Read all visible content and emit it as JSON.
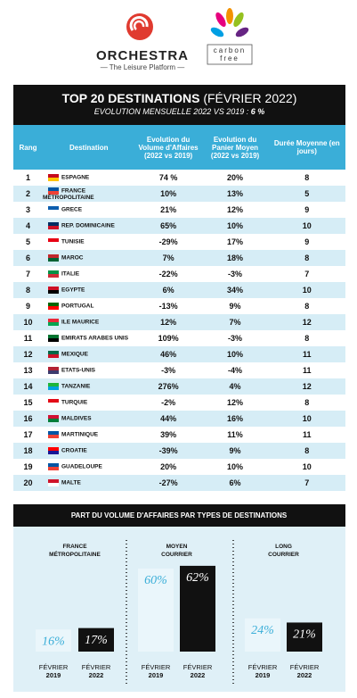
{
  "header": {
    "brand": "ORCHESTRA",
    "tagline": "— The Leisure Platform —",
    "partner_line1": "carbon",
    "partner_line2": "free"
  },
  "table": {
    "title": "TOP 20 DESTINATIONS",
    "title_suffix": "(FÉVRIER 2022)",
    "subtitle": "EVOLUTION MENSUELLE 2022 VS 2019 :",
    "subtitle_value": "6 %",
    "columns": [
      "Rang",
      "Destination",
      "Evolution du Volume d'Affaires (2022 vs 2019)",
      "Evolution du Panier Moyen (2022 vs 2019)",
      "Durée Moyenne (en jours)"
    ],
    "rows": [
      [
        1,
        "ESPAGNE",
        "74 %",
        "20%",
        8
      ],
      [
        2,
        "FRANCE MÉTROPOLITAINE",
        "10%",
        "13%",
        5
      ],
      [
        3,
        "GRECE",
        "21%",
        "12%",
        9
      ],
      [
        4,
        "REP. DOMINICAINE",
        "65%",
        "10%",
        10
      ],
      [
        5,
        "TUNISIE",
        "-29%",
        "17%",
        9
      ],
      [
        6,
        "MAROC",
        "7%",
        "18%",
        8
      ],
      [
        7,
        "ITALIE",
        "-22%",
        "-3%",
        7
      ],
      [
        8,
        "EGYPTE",
        "6%",
        "34%",
        10
      ],
      [
        9,
        "PORTUGAL",
        "-13%",
        "9%",
        8
      ],
      [
        10,
        "ILE MAURICE",
        "12%",
        "7%",
        12
      ],
      [
        11,
        "EMIRATS ARABES UNIS",
        "109%",
        "-3%",
        8
      ],
      [
        12,
        "MEXIQUE",
        "46%",
        "10%",
        11
      ],
      [
        13,
        "ETATS-UNIS",
        "-3%",
        "-4%",
        11
      ],
      [
        14,
        "TANZANIE",
        "276%",
        "4%",
        12
      ],
      [
        15,
        "TURQUIE",
        "-2%",
        "12%",
        8
      ],
      [
        16,
        "MALDIVES",
        "44%",
        "16%",
        10
      ],
      [
        17,
        "MARTINIQUE",
        "39%",
        "11%",
        11
      ],
      [
        18,
        "CROATIE",
        "-39%",
        "9%",
        8
      ],
      [
        19,
        "GUADELOUPE",
        "20%",
        "10%",
        10
      ],
      [
        20,
        "MALTE",
        "-27%",
        "6%",
        7
      ]
    ]
  },
  "chart_data": {
    "type": "bar",
    "title": "PART DU VOLUME D'AFFAIRES PAR TYPES DE DESTINATIONS",
    "categories": [
      "FRANCE MÉTROPOLITAINE",
      "MOYEN COURRIER",
      "LONG COURRIER"
    ],
    "series": [
      {
        "name": "FÉVRIER 2019",
        "color": "#eaf6fb",
        "values": [
          16,
          60,
          24
        ],
        "value_labels": [
          "16%",
          "60%",
          "24%"
        ]
      },
      {
        "name": "FÉVRIER 2022",
        "color": "#111111",
        "values": [
          17,
          62,
          21
        ],
        "value_labels": [
          "17%",
          "62%",
          "21%"
        ]
      }
    ]
  }
}
